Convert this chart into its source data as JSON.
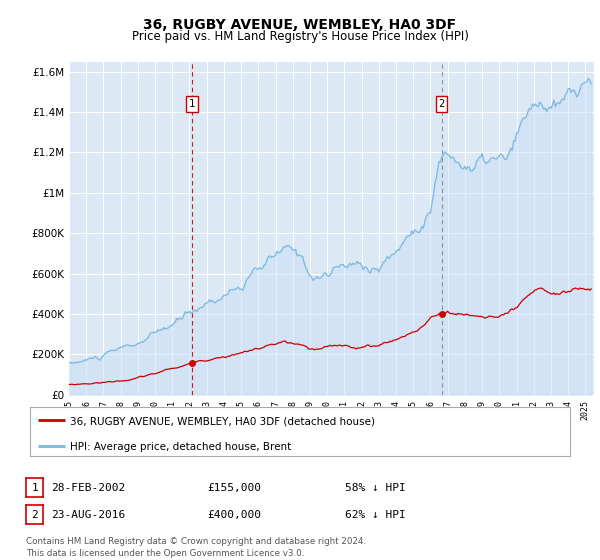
{
  "title": "36, RUGBY AVENUE, WEMBLEY, HA0 3DF",
  "subtitle": "Price paid vs. HM Land Registry's House Price Index (HPI)",
  "background_color": "#dce9f5",
  "hpi_color": "#7ab8e0",
  "price_color": "#cc0000",
  "vline1_color": "#cc0000",
  "vline2_color": "#888888",
  "marker1_label": "28-FEB-2002",
  "marker1_price": "£155,000",
  "marker1_hpi": "58% ↓ HPI",
  "marker2_label": "23-AUG-2016",
  "marker2_price": "£400,000",
  "marker2_hpi": "62% ↓ HPI",
  "legend_line1": "36, RUGBY AVENUE, WEMBLEY, HA0 3DF (detached house)",
  "legend_line2": "HPI: Average price, detached house, Brent",
  "footer": "Contains HM Land Registry data © Crown copyright and database right 2024.\nThis data is licensed under the Open Government Licence v3.0.",
  "sale1_x": 2002.15,
  "sale1_y": 155000,
  "sale2_x": 2016.65,
  "sale2_y": 400000,
  "ylim": [
    0,
    1600000
  ],
  "xlim_start": 1995.0,
  "xlim_end": 2025.5
}
